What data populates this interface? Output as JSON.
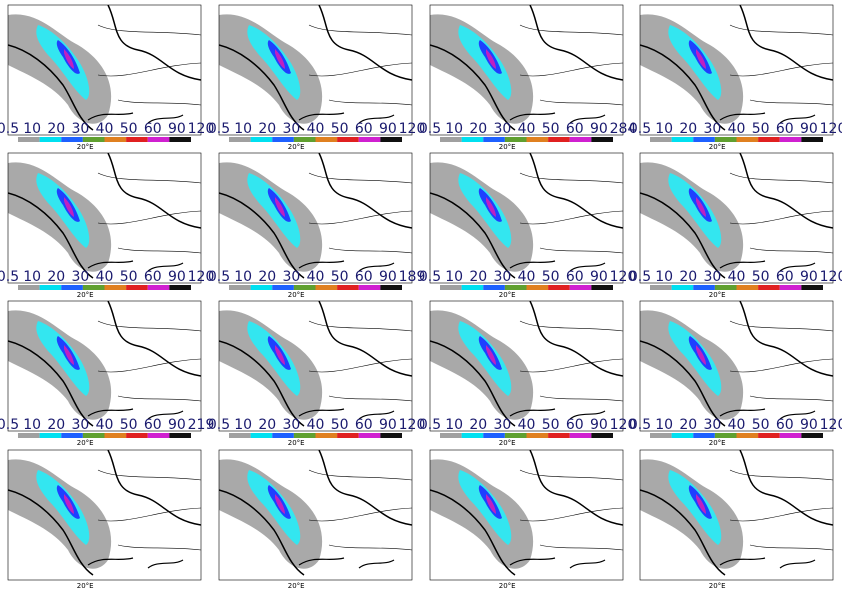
{
  "panels": [
    {
      "colorbar": [
        "0.5",
        10,
        20,
        30,
        40,
        50,
        60,
        90,
        120
      ],
      "lon_label": "20°E"
    },
    {
      "colorbar": [
        "0.5",
        10,
        20,
        30,
        40,
        50,
        60,
        90,
        120
      ],
      "lon_label": "20°E"
    },
    {
      "colorbar": [
        "0.5",
        10,
        20,
        30,
        40,
        50,
        60,
        90,
        284
      ],
      "lon_label": "20°E"
    },
    {
      "colorbar": [
        "0.5",
        10,
        20,
        30,
        40,
        50,
        60,
        90,
        120
      ],
      "lon_label": "20°E"
    },
    {
      "colorbar": [
        "0.5",
        10,
        20,
        30,
        40,
        50,
        60,
        90,
        120
      ],
      "lon_label": "20°E"
    },
    {
      "colorbar": [
        "0.5",
        10,
        20,
        30,
        40,
        50,
        60,
        90,
        189
      ],
      "lon_label": "20°E"
    },
    {
      "colorbar": [
        "0.5",
        10,
        20,
        30,
        40,
        50,
        60,
        90,
        120
      ],
      "lon_label": "20°E"
    },
    {
      "colorbar": [
        "0.5",
        10,
        20,
        30,
        40,
        50,
        60,
        90,
        120
      ],
      "lon_label": "20°E"
    },
    {
      "colorbar": [
        "0.5",
        10,
        20,
        30,
        40,
        50,
        60,
        90,
        219
      ],
      "lon_label": "20°E"
    },
    {
      "colorbar": [
        "0.5",
        10,
        20,
        30,
        40,
        50,
        60,
        90,
        120
      ],
      "lon_label": "20°E"
    },
    {
      "colorbar": [
        "0.5",
        10,
        20,
        30,
        40,
        50,
        60,
        90,
        120
      ],
      "lon_label": "20°E"
    },
    {
      "colorbar": [
        "0.5",
        10,
        20,
        30,
        40,
        50,
        60,
        90,
        120
      ],
      "lon_label": "20°E"
    },
    {
      "lon_label": "20°E"
    },
    {
      "lon_label": "20°E"
    },
    {
      "lon_label": "20°E"
    },
    {
      "lon_label": "20°E"
    }
  ]
}
